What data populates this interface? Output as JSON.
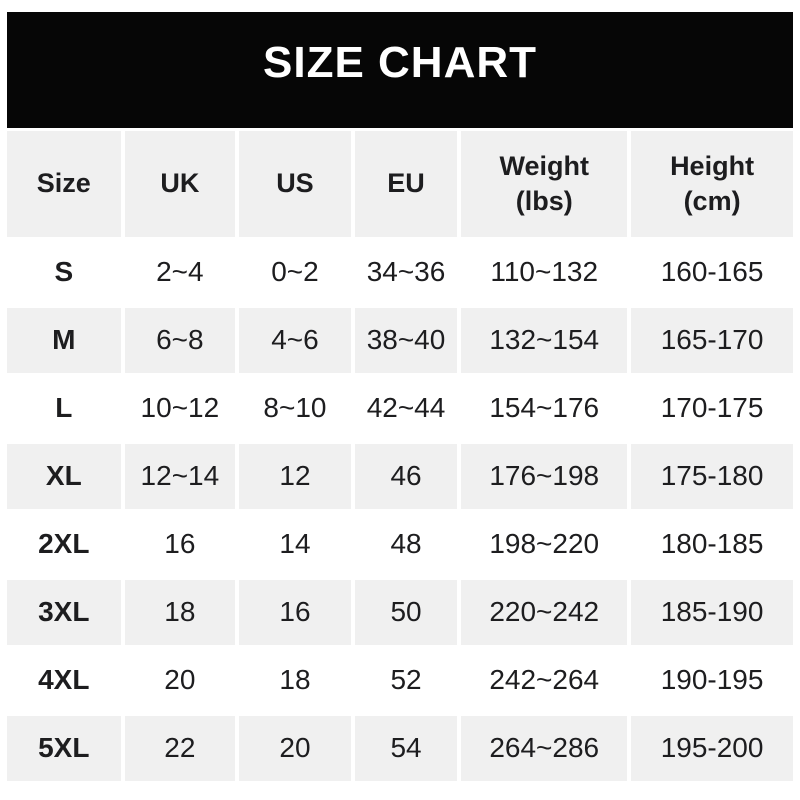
{
  "title": "SIZE CHART",
  "colors": {
    "banner_bg": "#060606",
    "title_text": "#ffffff",
    "row_alt_bg": "#f0f0f0",
    "row_white_bg": "#ffffff",
    "cell_text": "#1d1d1f",
    "page_bg": "#ffffff"
  },
  "header": {
    "columns": [
      {
        "line1": "Size",
        "line2": ""
      },
      {
        "line1": "UK",
        "line2": ""
      },
      {
        "line1": "US",
        "line2": ""
      },
      {
        "line1": "EU",
        "line2": ""
      },
      {
        "line1": "Weight",
        "line2": "(lbs)"
      },
      {
        "line1": "Height",
        "line2": "(cm)"
      }
    ]
  },
  "chart_data": {
    "type": "table",
    "title": "SIZE CHART",
    "columns": [
      "Size",
      "UK",
      "US",
      "EU",
      "Weight (lbs)",
      "Height (cm)"
    ],
    "rows": [
      [
        "S",
        "2~4",
        "0~2",
        "34~36",
        "110~132",
        "160-165"
      ],
      [
        "M",
        "6~8",
        "4~6",
        "38~40",
        "132~154",
        "165-170"
      ],
      [
        "L",
        "10~12",
        "8~10",
        "42~44",
        "154~176",
        "170-175"
      ],
      [
        "XL",
        "12~14",
        "12",
        "46",
        "176~198",
        "175-180"
      ],
      [
        "2XL",
        "16",
        "14",
        "48",
        "198~220",
        "180-185"
      ],
      [
        "3XL",
        "18",
        "16",
        "50",
        "220~242",
        "185-190"
      ],
      [
        "4XL",
        "20",
        "18",
        "52",
        "242~264",
        "190-195"
      ],
      [
        "5XL",
        "22",
        "20",
        "54",
        "264~286",
        "195-200"
      ]
    ]
  }
}
